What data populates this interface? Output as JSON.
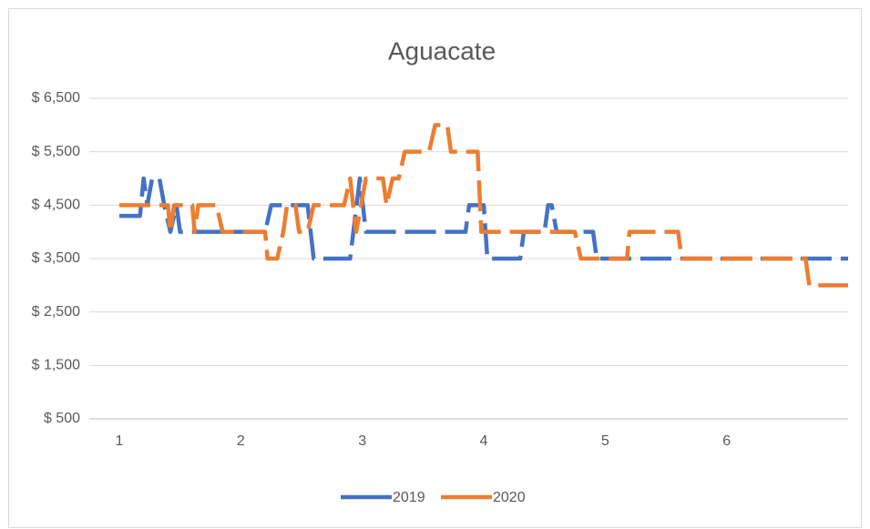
{
  "chart_data": {
    "type": "line",
    "title": "Aguacate",
    "xlim": [
      1,
      7
    ],
    "xticks": [
      1,
      2,
      3,
      4,
      5,
      6
    ],
    "ylim": [
      500,
      6500
    ],
    "yticks": [
      {
        "value": 500,
        "label": "$ 500"
      },
      {
        "value": 1500,
        "label": "$ 1,500"
      },
      {
        "value": 2500,
        "label": "$ 2,500"
      },
      {
        "value": 3500,
        "label": "$ 3,500"
      },
      {
        "value": 4500,
        "label": "$ 4,500"
      },
      {
        "value": 5500,
        "label": "$ 5,500"
      },
      {
        "value": 6500,
        "label": "$ 6,500"
      }
    ],
    "grid": true,
    "legend": "bottom",
    "series": [
      {
        "name": "2019",
        "color": "#4472c4",
        "x": [
          1,
          1.17,
          1.2,
          1.23,
          1.27,
          1.33,
          1.37,
          1.42,
          1.47,
          1.5,
          2.2,
          2.25,
          2.55,
          2.6,
          2.9,
          2.98,
          3.03,
          3.85,
          3.88,
          4.0,
          4.03,
          4.3,
          4.33,
          4.5,
          4.53,
          4.56,
          4.6,
          4.9,
          4.93,
          7
        ],
        "values": [
          4300,
          4300,
          5000,
          4500,
          5000,
          5000,
          4500,
          4000,
          4500,
          4000,
          4000,
          4500,
          4500,
          3500,
          3500,
          5000,
          4000,
          4000,
          4500,
          4500,
          3500,
          3500,
          4000,
          4000,
          4500,
          4500,
          4000,
          4000,
          3500,
          3500
        ]
      },
      {
        "name": "2020",
        "color": "#ed7d31",
        "x": [
          1,
          1.4,
          1.42,
          1.45,
          1.6,
          1.62,
          1.65,
          1.8,
          1.85,
          2.2,
          2.22,
          2.3,
          2.35,
          2.38,
          2.45,
          2.48,
          2.55,
          2.6,
          2.85,
          2.9,
          2.95,
          3.03,
          3.17,
          3.2,
          3.25,
          3.3,
          3.35,
          3.55,
          3.6,
          3.7,
          3.73,
          3.95,
          3.96,
          3.98,
          4.75,
          4.8,
          5.18,
          5.2,
          5.6,
          5.63,
          6.65,
          6.68,
          7
        ],
        "values": [
          4500,
          4500,
          4000,
          4500,
          4500,
          4000,
          4500,
          4500,
          4000,
          4000,
          3500,
          3500,
          4000,
          4500,
          4500,
          4000,
          4000,
          4500,
          4500,
          5000,
          4000,
          5000,
          5000,
          4500,
          5000,
          5000,
          5500,
          5500,
          6000,
          6000,
          5500,
          5500,
          5000,
          4000,
          4000,
          3500,
          3500,
          4000,
          4000,
          3500,
          3500,
          3000,
          3000
        ]
      }
    ]
  }
}
